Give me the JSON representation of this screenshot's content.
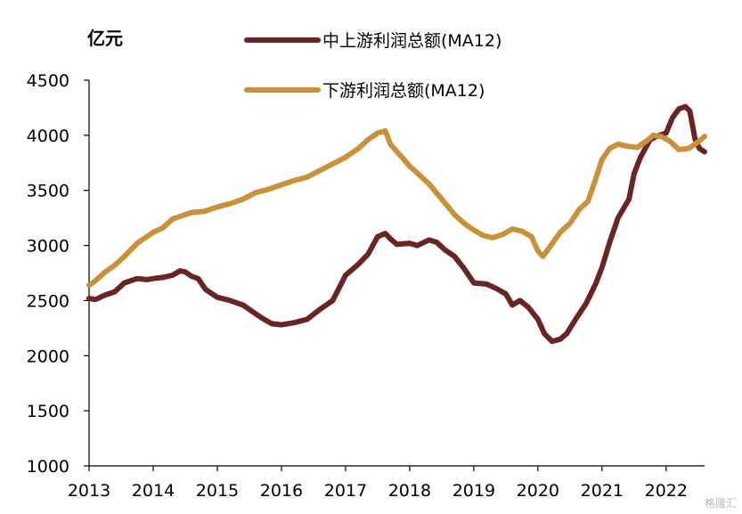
{
  "chart_data": {
    "type": "line",
    "ylabel": "亿元",
    "ylim": [
      1000,
      4500
    ],
    "yticks": [
      1000,
      1500,
      2000,
      2500,
      3000,
      3500,
      4000,
      4500
    ],
    "xlim": [
      2013.0,
      2022.6
    ],
    "xticks": [
      2013,
      2014,
      2015,
      2016,
      2017,
      2018,
      2019,
      2020,
      2021,
      2022
    ],
    "grid": false,
    "legend_position": "top",
    "series": [
      {
        "name": "中上游利润总额(MA12)",
        "color": "#6b2424",
        "points": [
          [
            2013.0,
            2520
          ],
          [
            2013.1,
            2510
          ],
          [
            2013.25,
            2550
          ],
          [
            2013.4,
            2580
          ],
          [
            2013.55,
            2660
          ],
          [
            2013.75,
            2700
          ],
          [
            2013.9,
            2690
          ],
          [
            2014.0,
            2700
          ],
          [
            2014.15,
            2710
          ],
          [
            2014.3,
            2730
          ],
          [
            2014.42,
            2770
          ],
          [
            2014.5,
            2760
          ],
          [
            2014.6,
            2720
          ],
          [
            2014.7,
            2700
          ],
          [
            2014.82,
            2600
          ],
          [
            2015.0,
            2530
          ],
          [
            2015.2,
            2500
          ],
          [
            2015.4,
            2460
          ],
          [
            2015.55,
            2400
          ],
          [
            2015.7,
            2340
          ],
          [
            2015.85,
            2290
          ],
          [
            2016.0,
            2280
          ],
          [
            2016.2,
            2300
          ],
          [
            2016.4,
            2330
          ],
          [
            2016.6,
            2420
          ],
          [
            2016.8,
            2500
          ],
          [
            2017.0,
            2730
          ],
          [
            2017.2,
            2830
          ],
          [
            2017.35,
            2920
          ],
          [
            2017.5,
            3080
          ],
          [
            2017.62,
            3110
          ],
          [
            2017.7,
            3060
          ],
          [
            2017.8,
            3010
          ],
          [
            2018.0,
            3020
          ],
          [
            2018.12,
            3000
          ],
          [
            2018.3,
            3050
          ],
          [
            2018.42,
            3030
          ],
          [
            2018.55,
            2960
          ],
          [
            2018.7,
            2900
          ],
          [
            2018.85,
            2790
          ],
          [
            2019.0,
            2660
          ],
          [
            2019.2,
            2650
          ],
          [
            2019.35,
            2610
          ],
          [
            2019.5,
            2560
          ],
          [
            2019.6,
            2460
          ],
          [
            2019.72,
            2500
          ],
          [
            2019.85,
            2440
          ],
          [
            2020.0,
            2330
          ],
          [
            2020.1,
            2200
          ],
          [
            2020.22,
            2130
          ],
          [
            2020.35,
            2150
          ],
          [
            2020.45,
            2200
          ],
          [
            2020.6,
            2340
          ],
          [
            2020.75,
            2470
          ],
          [
            2020.9,
            2650
          ],
          [
            2021.0,
            2800
          ],
          [
            2021.12,
            3030
          ],
          [
            2021.25,
            3250
          ],
          [
            2021.42,
            3420
          ],
          [
            2021.5,
            3650
          ],
          [
            2021.6,
            3800
          ],
          [
            2021.75,
            3960
          ],
          [
            2021.85,
            3990
          ],
          [
            2022.0,
            4020
          ],
          [
            2022.1,
            4160
          ],
          [
            2022.2,
            4240
          ],
          [
            2022.3,
            4260
          ],
          [
            2022.37,
            4220
          ],
          [
            2022.45,
            3970
          ],
          [
            2022.52,
            3880
          ],
          [
            2022.6,
            3850
          ]
        ]
      },
      {
        "name": "下游利润总额(MA12)",
        "color": "#c8913a",
        "points": [
          [
            2013.0,
            2640
          ],
          [
            2013.1,
            2680
          ],
          [
            2013.25,
            2760
          ],
          [
            2013.4,
            2820
          ],
          [
            2013.55,
            2900
          ],
          [
            2013.75,
            3020
          ],
          [
            2013.9,
            3080
          ],
          [
            2014.0,
            3120
          ],
          [
            2014.15,
            3160
          ],
          [
            2014.3,
            3240
          ],
          [
            2014.45,
            3270
          ],
          [
            2014.6,
            3300
          ],
          [
            2014.8,
            3310
          ],
          [
            2015.0,
            3350
          ],
          [
            2015.2,
            3380
          ],
          [
            2015.4,
            3420
          ],
          [
            2015.6,
            3480
          ],
          [
            2015.8,
            3510
          ],
          [
            2016.0,
            3550
          ],
          [
            2016.2,
            3590
          ],
          [
            2016.4,
            3620
          ],
          [
            2016.6,
            3680
          ],
          [
            2016.8,
            3740
          ],
          [
            2017.0,
            3800
          ],
          [
            2017.2,
            3880
          ],
          [
            2017.35,
            3960
          ],
          [
            2017.5,
            4020
          ],
          [
            2017.62,
            4040
          ],
          [
            2017.7,
            3920
          ],
          [
            2017.85,
            3820
          ],
          [
            2018.0,
            3720
          ],
          [
            2018.15,
            3640
          ],
          [
            2018.3,
            3560
          ],
          [
            2018.5,
            3420
          ],
          [
            2018.7,
            3280
          ],
          [
            2018.85,
            3200
          ],
          [
            2019.0,
            3140
          ],
          [
            2019.15,
            3090
          ],
          [
            2019.3,
            3070
          ],
          [
            2019.45,
            3100
          ],
          [
            2019.6,
            3150
          ],
          [
            2019.75,
            3130
          ],
          [
            2019.9,
            3080
          ],
          [
            2020.0,
            2950
          ],
          [
            2020.08,
            2900
          ],
          [
            2020.2,
            3000
          ],
          [
            2020.35,
            3120
          ],
          [
            2020.5,
            3200
          ],
          [
            2020.65,
            3330
          ],
          [
            2020.78,
            3400
          ],
          [
            2020.9,
            3600
          ],
          [
            2021.0,
            3780
          ],
          [
            2021.12,
            3880
          ],
          [
            2021.25,
            3920
          ],
          [
            2021.4,
            3900
          ],
          [
            2021.55,
            3890
          ],
          [
            2021.7,
            3950
          ],
          [
            2021.8,
            4000
          ],
          [
            2021.92,
            3990
          ],
          [
            2022.05,
            3950
          ],
          [
            2022.2,
            3870
          ],
          [
            2022.35,
            3880
          ],
          [
            2022.5,
            3940
          ],
          [
            2022.6,
            3990
          ]
        ]
      }
    ]
  },
  "watermark_text": "格隆汇"
}
